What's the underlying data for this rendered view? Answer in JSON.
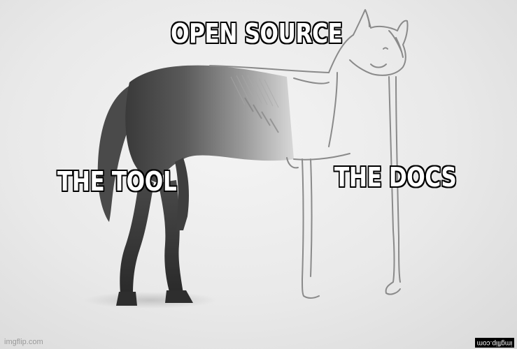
{
  "meme": {
    "captions": {
      "top": "OPEN SOURCE",
      "left": "THE TOOL",
      "right": "THE DOCS"
    },
    "watermark_left": "imgflip.com",
    "watermark_right": "imgflip.com"
  },
  "colors": {
    "caption_fill": "#ffffff",
    "caption_outline": "#000000",
    "paper": "#ececec",
    "horse_shading": "#555555",
    "pencil_line": "#8a8a8a"
  },
  "icons": [
    "horse-drawing"
  ]
}
